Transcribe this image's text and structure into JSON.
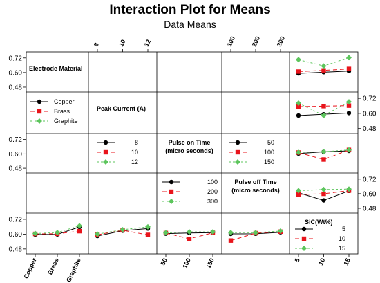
{
  "chart_data": {
    "type": "line",
    "title": "Interaction Plot for Means",
    "subtitle": "Data Means",
    "factors": [
      {
        "name": "Electrode Material",
        "levels": [
          "Copper",
          "Brass",
          "Graphite"
        ],
        "tick_labels": [
          "Copper",
          "Brass",
          "Graphite"
        ]
      },
      {
        "name": "Peak Current (A)",
        "levels": [
          8,
          10,
          12
        ],
        "tick_labels": [
          "8",
          "10",
          "12"
        ]
      },
      {
        "name": "Pulse on Time (micro seconds)",
        "label_lines": [
          "Pulse on Time",
          "(micro seconds)"
        ],
        "levels": [
          50,
          100,
          150
        ],
        "tick_labels": [
          "50",
          "100",
          "150"
        ]
      },
      {
        "name": "Pulse off Time (micro seconds)",
        "label_lines": [
          "Pulse off Time",
          "(micro seconds)"
        ],
        "levels": [
          100,
          200,
          300
        ],
        "tick_labels": [
          "100",
          "200",
          "300"
        ]
      },
      {
        "name": "SiC(Wt%)",
        "levels": [
          5,
          10,
          15
        ],
        "tick_labels": [
          "5",
          "10",
          "15"
        ]
      }
    ],
    "legends": [
      {
        "entries": [
          "Copper",
          "Brass",
          "Graphite"
        ]
      },
      {
        "entries": [
          "8",
          "10",
          "12"
        ]
      },
      {
        "entries": [
          "50",
          "100",
          "150"
        ]
      },
      {
        "entries": [
          "100",
          "200",
          "300"
        ]
      },
      {
        "entries": [
          "5",
          "10",
          "15"
        ]
      }
    ],
    "series_styles": [
      {
        "color": "#000000",
        "marker": "circle",
        "dash": "none"
      },
      {
        "color": "#e8141b",
        "marker": "square",
        "dash": "6,4"
      },
      {
        "color": "#5cc55c",
        "marker": "diamond",
        "dash": "3,3"
      }
    ],
    "y_ticks": [
      "0.48",
      "0.60",
      "0.72"
    ],
    "ylim": [
      0.44,
      0.77
    ],
    "panels": [
      {
        "row": 0,
        "col": 4,
        "series": [
          [
            0.593,
            0.603,
            0.612
          ],
          [
            0.608,
            0.618,
            0.63
          ],
          [
            0.706,
            0.654,
            0.723
          ]
        ]
      },
      {
        "row": 1,
        "col": 4,
        "series": [
          [
            0.583,
            0.593,
            0.603
          ],
          [
            0.654,
            0.658,
            0.662
          ],
          [
            0.682,
            0.583,
            0.692
          ]
        ]
      },
      {
        "row": 2,
        "col": 4,
        "series": [
          [
            0.603,
            0.617,
            0.625
          ],
          [
            0.611,
            0.553,
            0.633
          ],
          [
            0.613,
            0.618,
            0.633
          ]
        ]
      },
      {
        "row": 3,
        "col": 4,
        "series": [
          [
            0.608,
            0.545,
            0.623
          ],
          [
            0.593,
            0.599,
            0.625
          ],
          [
            0.625,
            0.634,
            0.638
          ]
        ]
      },
      {
        "row": 4,
        "col": 0,
        "series": [
          [
            0.597,
            0.598,
            0.658
          ],
          [
            0.602,
            0.603,
            0.624
          ],
          [
            0.605,
            0.613,
            0.667
          ]
        ]
      },
      {
        "row": 4,
        "col": 1,
        "series": [
          [
            0.585,
            0.628,
            0.645
          ],
          [
            0.595,
            0.631,
            0.594
          ],
          [
            0.6,
            0.636,
            0.659
          ]
        ]
      },
      {
        "row": 4,
        "col": 2,
        "series": [
          [
            0.604,
            0.609,
            0.612
          ],
          [
            0.609,
            0.562,
            0.611
          ],
          [
            0.611,
            0.618,
            0.618
          ]
        ]
      },
      {
        "row": 4,
        "col": 3,
        "series": [
          [
            0.602,
            0.603,
            0.615
          ],
          [
            0.548,
            0.608,
            0.62
          ],
          [
            0.613,
            0.612,
            0.625
          ]
        ]
      }
    ],
    "legend_placement": "inside diagonal panels, lower-left",
    "grid": false
  }
}
